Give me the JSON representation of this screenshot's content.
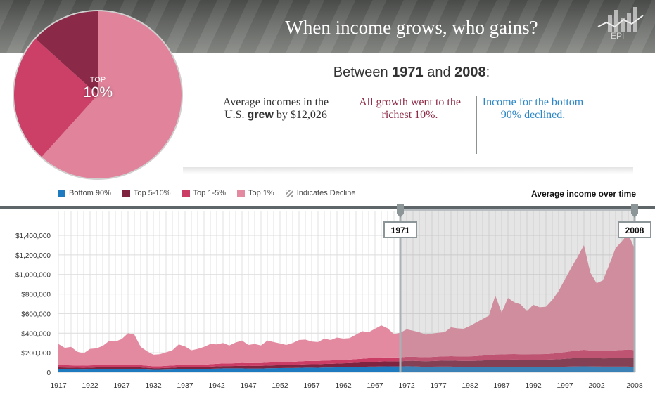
{
  "header": {
    "title": "When income grows, who gains?",
    "logo_text": "EPI"
  },
  "pie": {
    "label_top": "TOP",
    "label_pct": "10%",
    "slices": [
      {
        "name": "Top 1%",
        "share": 0.617,
        "color": "#e0839b"
      },
      {
        "name": "Top 1-5%",
        "share": 0.25,
        "color": "#cc4068"
      },
      {
        "name": "Top 5-10%",
        "share": 0.133,
        "color": "#8a2a48"
      }
    ]
  },
  "summary": {
    "between_pre": "Between ",
    "year_start": "1971",
    "between_mid": " and ",
    "year_end": "2008",
    "between_post": ":",
    "col1_a": "Average incomes in the U.S. ",
    "col1_bold": "grew",
    "col1_b": " by $12,026",
    "col2": "All growth went to the richest 10%.",
    "col3": "Income for the bottom 90% declined."
  },
  "legend": [
    {
      "label": "Bottom 90%",
      "color": "#1f7bc0"
    },
    {
      "label": "Top 5-10%",
      "color": "#7e2440"
    },
    {
      "label": "Top 1-5%",
      "color": "#cc3d66"
    },
    {
      "label": "Top 1%",
      "color": "#e38aa0"
    },
    {
      "label": "Indicates Decline",
      "color": "hatched"
    }
  ],
  "chart_data": {
    "type": "area",
    "stacked": true,
    "title": "Average income over time",
    "xlabel": "",
    "ylabel": "",
    "xlim": [
      1917,
      2008
    ],
    "ylim": [
      0,
      1400000
    ],
    "grid": true,
    "legend_position": "top-left",
    "x_ticks": [
      1917,
      1922,
      1927,
      1932,
      1937,
      1942,
      1947,
      1952,
      1957,
      1962,
      1967,
      1972,
      1977,
      1982,
      1987,
      1992,
      1997,
      2002,
      2008
    ],
    "y_ticks": [
      0,
      200000,
      400000,
      600000,
      800000,
      1000000,
      1200000,
      1400000
    ],
    "y_tick_labels": [
      "0",
      "$200,000",
      "$400,000",
      "$600,000",
      "$800,000",
      "$1,000,000",
      "$1,200,000",
      "$1,400,000"
    ],
    "highlight_range": {
      "start": 1971,
      "end": 2008,
      "start_label": "1971",
      "end_label": "2008"
    },
    "series": [
      {
        "name": "Bottom 90%",
        "color": "#1f7bc0",
        "values": [
          32000,
          31000,
          30000,
          29000,
          28000,
          29000,
          31000,
          31000,
          31000,
          32000,
          32000,
          33000,
          33000,
          31000,
          28000,
          25000,
          25000,
          27000,
          28000,
          31000,
          32000,
          30000,
          31000,
          33000,
          36000,
          38000,
          40000,
          40000,
          40000,
          40000,
          39000,
          39000,
          39000,
          41000,
          42000,
          43000,
          44000,
          44000,
          46000,
          48000,
          48000,
          47000,
          49000,
          49000,
          50000,
          51000,
          52000,
          54000,
          56000,
          58000,
          58000,
          60000,
          61000,
          60000,
          60000,
          62000,
          61000,
          58000,
          56000,
          57000,
          58000,
          58000,
          58000,
          56000,
          55000,
          54000,
          54000,
          55000,
          56000,
          56000,
          57000,
          57000,
          57000,
          56000,
          55000,
          55000,
          55000,
          55000,
          55000,
          56000,
          57000,
          59000,
          60000,
          61000,
          60000,
          59000,
          58000,
          58000,
          58000,
          58000,
          58000,
          55000
        ]
      },
      {
        "name": "Top 5-10%",
        "color": "#7e2440",
        "values": [
          18000,
          18000,
          18000,
          18000,
          18000,
          19000,
          19000,
          19000,
          20000,
          20000,
          20000,
          20000,
          19000,
          19000,
          18000,
          17000,
          17000,
          18000,
          19000,
          20000,
          20000,
          20000,
          20000,
          21000,
          22000,
          23000,
          24000,
          24000,
          25000,
          26000,
          26000,
          27000,
          27000,
          28000,
          29000,
          30000,
          31000,
          32000,
          33000,
          34000,
          35000,
          36000,
          37000,
          38000,
          40000,
          41000,
          42000,
          44000,
          45000,
          47000,
          48000,
          50000,
          51000,
          52000,
          52000,
          55000,
          57000,
          57000,
          57000,
          58000,
          60000,
          61000,
          62000,
          62000,
          62000,
          63000,
          64000,
          66000,
          68000,
          70000,
          71000,
          72000,
          73000,
          73000,
          73000,
          73000,
          73000,
          74000,
          76000,
          78000,
          81000,
          84000,
          87000,
          89000,
          89000,
          86000,
          85000,
          86000,
          88000,
          90000,
          92000,
          92000
        ]
      },
      {
        "name": "Top 1-5%",
        "color": "#cc3d66",
        "values": [
          25000,
          24000,
          23000,
          22000,
          22000,
          23000,
          23000,
          24000,
          24000,
          25000,
          26000,
          26000,
          25000,
          23000,
          21000,
          20000,
          20000,
          21000,
          22000,
          23000,
          23000,
          22000,
          23000,
          24000,
          25000,
          26000,
          27000,
          27000,
          28000,
          30000,
          29000,
          29000,
          29000,
          30000,
          30000,
          31000,
          31000,
          32000,
          32000,
          33000,
          33000,
          33000,
          34000,
          34000,
          35000,
          35000,
          36000,
          37000,
          38000,
          39000,
          40000,
          41000,
          41000,
          40000,
          40000,
          42000,
          42000,
          41000,
          41000,
          42000,
          43000,
          44000,
          45000,
          45000,
          45000,
          46000,
          48000,
          50000,
          52000,
          56000,
          55000,
          57000,
          57000,
          56000,
          57000,
          58000,
          58000,
          58000,
          60000,
          64000,
          68000,
          72000,
          76000,
          80000,
          74000,
          72000,
          72000,
          74000,
          78000,
          80000,
          82000,
          80000
        ]
      },
      {
        "name": "Top 1%",
        "color": "#e38aa0",
        "values": [
          215000,
          177000,
          189000,
          141000,
          127000,
          169000,
          172000,
          196000,
          245000,
          238000,
          262000,
          321000,
          308000,
          187000,
          148000,
          118000,
          123000,
          139000,
          156000,
          211000,
          190000,
          153000,
          166000,
          182000,
          207000,
          198000,
          209000,
          184000,
          212000,
          229000,
          186000,
          195000,
          180000,
          226000,
          209000,
          191000,
          174000,
          192000,
          219000,
          220000,
          199000,
          194000,
          225000,
          209000,
          230000,
          218000,
          220000,
          250000,
          281000,
          266000,
          299000,
          329000,
          297000,
          238000,
          253000,
          281000,
          265000,
          254000,
          231000,
          238000,
          244000,
          247000,
          295000,
          287000,
          283000,
          312000,
          344000,
          374000,
          404000,
          603000,
          427000,
          574000,
          528000,
          510000,
          440000,
          504000,
          479000,
          483000,
          549000,
          632000,
          744000,
          855000,
          957000,
          1070000,
          797000,
          693000,
          725000,
          882000,
          1046000,
          1112000,
          1188000,
          1033000
        ]
      }
    ]
  }
}
